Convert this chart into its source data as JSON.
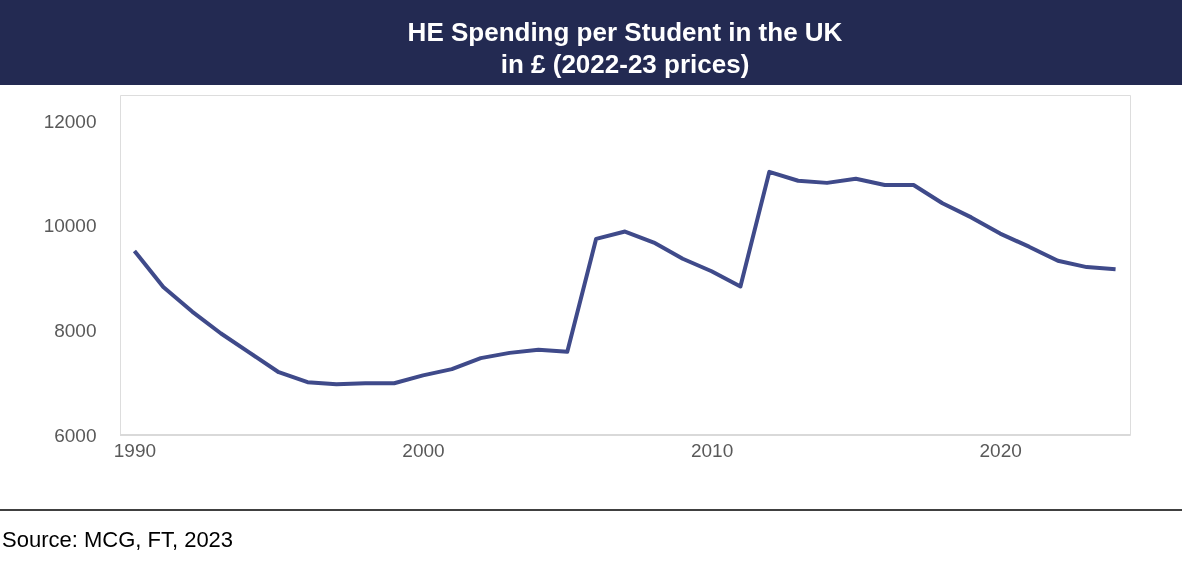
{
  "chart_data": {
    "type": "line",
    "title": "HE Spending per Student in the UK\nin £ (2022-23 prices)",
    "annotations": [
      "Source: MCG, FT, 2023"
    ],
    "x": [
      1990,
      1991,
      1992,
      1993,
      1994,
      1995,
      1996,
      1997,
      1998,
      1999,
      2000,
      2001,
      2002,
      2003,
      2004,
      2005,
      2006,
      2007,
      2008,
      2009,
      2010,
      2011,
      2012,
      2013,
      2014,
      2015,
      2016,
      2017,
      2018,
      2019,
      2020,
      2021,
      2022,
      2023,
      2024
    ],
    "series": [
      {
        "color": "#3f4a8a",
        "values": [
          9520,
          8830,
          8360,
          7940,
          7570,
          7200,
          7010,
          6970,
          6990,
          6990,
          7140,
          7260,
          7470,
          7570,
          7630,
          7590,
          9750,
          9890,
          9680,
          9370,
          9130,
          8840,
          11030,
          10860,
          10820,
          10900,
          10780,
          10780,
          10430,
          10160,
          9850,
          9600,
          9330,
          9210,
          9170
        ]
      }
    ],
    "xlim": [
      1989.5,
      2024.5
    ],
    "xticks": [
      1990,
      2000,
      2010,
      2020
    ],
    "ylim": [
      6000,
      12500
    ],
    "yticks": [
      6000,
      8000,
      10000,
      12000
    ],
    "grid": false,
    "legend": false,
    "marker": "none",
    "line_style": "solid"
  }
}
